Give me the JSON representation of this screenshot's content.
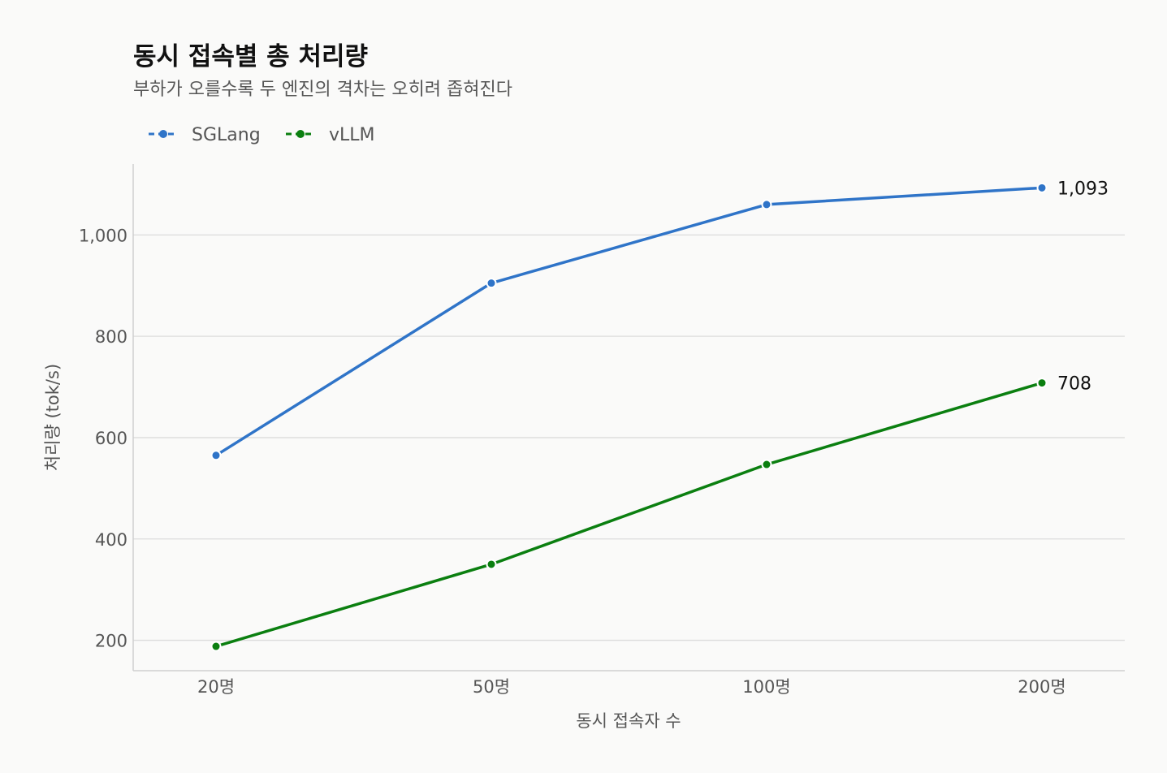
{
  "chart_data": {
    "type": "line",
    "title": "동시 접속별 총 처리량",
    "subtitle": "부하가 오를수록 두 엔진의 격차는 오히려 좁혀진다",
    "xlabel": "동시 접속자 수",
    "ylabel": "처리량 (tok/s)",
    "categories": [
      "20명",
      "50명",
      "100명",
      "200명"
    ],
    "yticks": [
      200,
      400,
      600,
      800,
      1000
    ],
    "ytick_labels": [
      "200",
      "400",
      "600",
      "800",
      "1,000"
    ],
    "ylim": [
      140,
      1140
    ],
    "grid": "horizontal",
    "legend": "top-left",
    "series": [
      {
        "name": "SGLang",
        "color": "#2f74c8",
        "values": [
          565,
          905,
          1060,
          1093
        ],
        "end_label": "1,093"
      },
      {
        "name": "vLLM",
        "color": "#0b7f10",
        "values": [
          188,
          350,
          547,
          708
        ],
        "end_label": "708"
      }
    ]
  }
}
